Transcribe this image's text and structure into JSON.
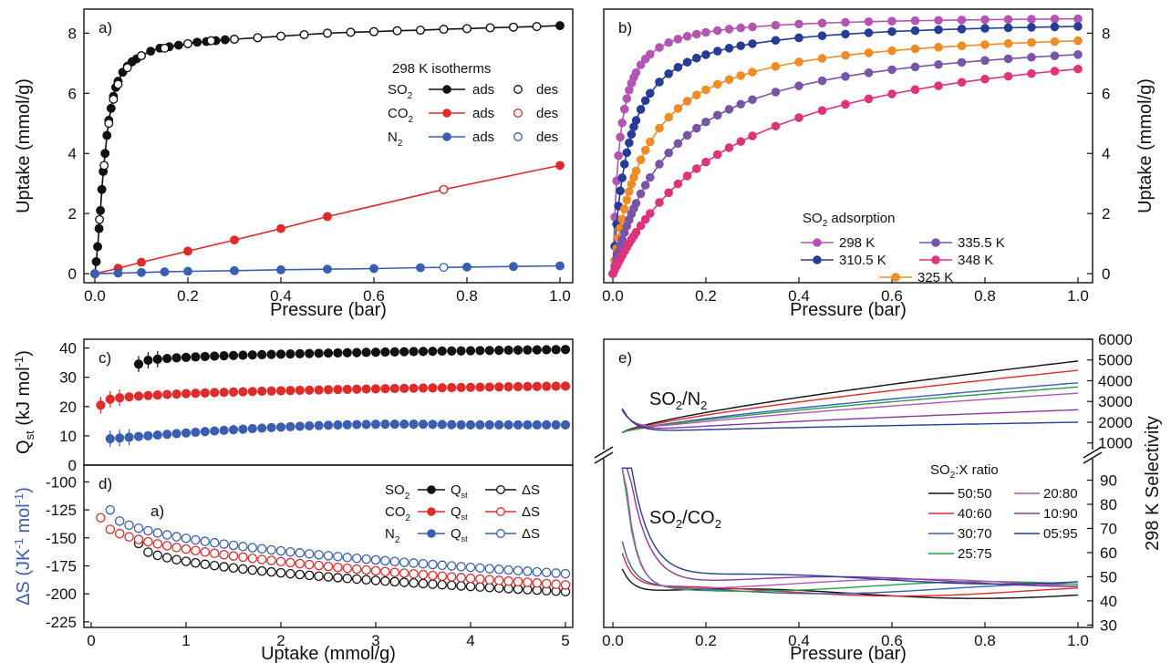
{
  "chart_data": [
    {
      "panel": "a)",
      "type": "scatter",
      "xlabel": "Pressure (bar)",
      "ylabel": "Uptake (mmol/g)",
      "xlim": [
        0,
        1.0
      ],
      "ylim": [
        -0.3,
        8.8
      ],
      "xticks": [
        "0.0",
        "0.2",
        "0.4",
        "0.6",
        "0.8",
        "1.0"
      ],
      "yticks": [
        "0",
        "2",
        "4",
        "6",
        "8"
      ],
      "legend_title": "298 K isotherms",
      "legend_labels": {
        "ads": "ads",
        "des": "des"
      },
      "legend_rows": [
        {
          "gas": "SO",
          "sub": "2",
          "color": "#111111"
        },
        {
          "gas": "CO",
          "sub": "2",
          "color": "#e02b2b"
        },
        {
          "gas": "N",
          "sub": "2",
          "color": "#3a5fb0"
        }
      ],
      "series": [
        {
          "name": "SO2 ads",
          "color": "#111111",
          "filled": true,
          "line": true,
          "x": [
            0.0,
            0.003,
            0.006,
            0.009,
            0.012,
            0.015,
            0.018,
            0.022,
            0.026,
            0.03,
            0.035,
            0.04,
            0.045,
            0.05,
            0.06,
            0.07,
            0.08,
            0.09,
            0.1,
            0.12,
            0.14,
            0.16,
            0.18,
            0.2,
            0.22,
            0.24,
            0.26,
            0.28,
            0.3,
            0.35,
            0.4,
            0.45,
            0.5,
            0.55,
            0.6,
            0.65,
            0.7,
            0.75,
            0.8,
            0.85,
            0.9,
            0.95,
            1.0
          ],
          "y": [
            0.0,
            0.4,
            0.9,
            1.5,
            2.1,
            2.8,
            3.4,
            4.0,
            4.6,
            5.1,
            5.5,
            5.9,
            6.2,
            6.4,
            6.7,
            6.9,
            7.05,
            7.15,
            7.25,
            7.4,
            7.5,
            7.55,
            7.6,
            7.65,
            7.7,
            7.72,
            7.75,
            7.78,
            7.8,
            7.85,
            7.9,
            7.95,
            8.0,
            8.03,
            8.05,
            8.08,
            8.1,
            8.13,
            8.15,
            8.18,
            8.2,
            8.22,
            8.25
          ]
        },
        {
          "name": "SO2 des",
          "color": "#111111",
          "filled": false,
          "line": false,
          "x": [
            0.01,
            0.02,
            0.03,
            0.04,
            0.05,
            0.07,
            0.1,
            0.15,
            0.2,
            0.25,
            0.3,
            0.35,
            0.4,
            0.45,
            0.5,
            0.55,
            0.6,
            0.65,
            0.7,
            0.75,
            0.8,
            0.85,
            0.9,
            0.95
          ],
          "y": [
            1.8,
            3.6,
            5.0,
            5.8,
            6.3,
            6.85,
            7.25,
            7.5,
            7.65,
            7.75,
            7.8,
            7.85,
            7.9,
            7.95,
            8.0,
            8.03,
            8.05,
            8.08,
            8.1,
            8.13,
            8.15,
            8.18,
            8.2,
            8.22
          ]
        },
        {
          "name": "CO2 ads",
          "color": "#e02b2b",
          "filled": true,
          "line": true,
          "x": [
            0.0,
            0.05,
            0.1,
            0.2,
            0.3,
            0.4,
            0.5,
            0.75,
            1.0
          ],
          "y": [
            0.0,
            0.18,
            0.38,
            0.75,
            1.12,
            1.5,
            1.9,
            2.8,
            3.6
          ]
        },
        {
          "name": "CO2 des",
          "color": "#e02b2b",
          "filled": false,
          "line": false,
          "x": [
            0.75
          ],
          "y": [
            2.8
          ]
        },
        {
          "name": "N2 ads",
          "color": "#3a5fb0",
          "filled": true,
          "line": true,
          "x": [
            0.0,
            0.05,
            0.1,
            0.15,
            0.2,
            0.3,
            0.4,
            0.5,
            0.6,
            0.7,
            0.8,
            0.9,
            1.0
          ],
          "y": [
            0.0,
            0.02,
            0.04,
            0.06,
            0.08,
            0.1,
            0.13,
            0.15,
            0.17,
            0.2,
            0.22,
            0.24,
            0.26
          ]
        },
        {
          "name": "N2 des",
          "color": "#3a5fb0",
          "filled": false,
          "line": false,
          "x": [
            0.75
          ],
          "y": [
            0.21
          ]
        }
      ]
    },
    {
      "panel": "b)",
      "type": "line",
      "xlabel": "Pressure (bar)",
      "ylabel": "Uptake (mmol/g)",
      "xlim": [
        0,
        1.0
      ],
      "ylim": [
        -0.3,
        8.8
      ],
      "xticks": [
        "0.0",
        "0.2",
        "0.4",
        "0.6",
        "0.8",
        "1.0"
      ],
      "yticks": [
        "0",
        "2",
        "4",
        "6",
        "8"
      ],
      "legend_title": "SO2 adsorption",
      "legend_title_parts": {
        "main": "SO",
        "sub": "2",
        "rest": " adsorption"
      },
      "series": [
        {
          "name": "298 K",
          "color": "#b455b4",
          "qmax": 8.6,
          "b": 70
        },
        {
          "name": "310.5 K",
          "color": "#263c96",
          "qmax": 8.5,
          "b": 30
        },
        {
          "name": "325 K",
          "color": "#f08c23",
          "qmax": 8.3,
          "b": 14
        },
        {
          "name": "335.5 K",
          "color": "#7855a8",
          "qmax": 8.2,
          "b": 8
        },
        {
          "name": "348 K",
          "color": "#e0327d",
          "qmax": 8.6,
          "b": 3.8
        }
      ]
    },
    {
      "panel": "c)",
      "type": "scatter",
      "xlim": [
        0,
        5
      ],
      "ylim": [
        0,
        43
      ],
      "yticks": [
        "0",
        "10",
        "20",
        "30",
        "40"
      ],
      "ylabel_main": "Q",
      "ylabel_sub": "st",
      "ylabel_rest": " (kJ mol",
      "ylabel_sup": "-1",
      "ylabel_close": ")",
      "series": [
        {
          "name": "SO2 Qst",
          "color": "#111111",
          "x_start": 0.5,
          "x_end": 5.0,
          "y_start": 34.5,
          "y_end": 39.5
        },
        {
          "name": "CO2 Qst",
          "color": "#e02b2b",
          "x_start": 0.1,
          "x_end": 5.0,
          "y_start": 20.5,
          "y_end": 27.0
        },
        {
          "name": "N2 Qst",
          "color": "#3a5fb0",
          "x_start": 0.2,
          "x_end": 5.0,
          "y_start": 9.0,
          "y_end": 12.0
        }
      ]
    },
    {
      "panel": "d)",
      "annotation": "a)",
      "type": "scatter",
      "xlabel": "Uptake (mmol/g)",
      "xlim": [
        0,
        5
      ],
      "ylim": [
        -230,
        -85
      ],
      "xticks": [
        "0",
        "1",
        "2",
        "3",
        "4",
        "5"
      ],
      "yticks": [
        "-100",
        "-125",
        "-150",
        "-175",
        "-200",
        "-225"
      ],
      "ylabel_main": "ΔS (JK",
      "ylabel_sup1": "-1",
      "ylabel_mid": " mol",
      "ylabel_sup2": "-1",
      "ylabel_close": ")",
      "legend": [
        {
          "gas": "SO",
          "sub": "2",
          "color": "#111111",
          "q": "Q",
          "qsub": "st",
          "ds": "ΔS"
        },
        {
          "gas": "CO",
          "sub": "2",
          "color": "#e02b2b",
          "q": "Q",
          "qsub": "st",
          "ds": "ΔS"
        },
        {
          "gas": "N",
          "sub": "2",
          "color": "#3a5fb0",
          "q": "Q",
          "qsub": "st",
          "ds": "ΔS"
        }
      ],
      "series": [
        {
          "name": "SO2 ΔS",
          "color": "#111111",
          "x_start": 0.5,
          "y_start": -155,
          "y_end": -198
        },
        {
          "name": "CO2 ΔS",
          "color": "#e02b2b",
          "x_start": 0.1,
          "y_start": -132,
          "y_end": -192
        },
        {
          "name": "N2 ΔS",
          "color": "#3a5fb0",
          "x_start": 0.2,
          "y_start": -125,
          "y_end": -182
        }
      ]
    },
    {
      "panel": "e)",
      "type": "line",
      "xlabel": "Pressure (bar)",
      "ylabel": "298 K Selectivity",
      "xlim": [
        0,
        1.0
      ],
      "xticks": [
        "0.0",
        "0.2",
        "0.4",
        "0.6",
        "0.8",
        "1.0"
      ],
      "upper_ylim": [
        900,
        6000
      ],
      "upper_yticks": [
        "1000",
        "2000",
        "3000",
        "4000",
        "5000",
        "6000"
      ],
      "lower_ylim": [
        29,
        97
      ],
      "lower_yticks": [
        "30",
        "40",
        "50",
        "60",
        "70",
        "80",
        "90"
      ],
      "upper_label": {
        "a": "SO",
        "asub": "2",
        "b": "/N",
        "bsub": "2"
      },
      "lower_label": {
        "a": "SO",
        "asub": "2",
        "b": "/CO",
        "bsub": "2"
      },
      "legend_title": {
        "main": "SO",
        "sub": "2",
        "rest": ":X ratio"
      },
      "ratios": [
        "50:50",
        "40:60",
        "30:70",
        "25:75",
        "20:80",
        "10:90",
        "05:95"
      ],
      "colors": [
        "#111111",
        "#e02b2b",
        "#3a5fb0",
        "#2a9e4a",
        "#b455b4",
        "#8a3a9e",
        "#263c96"
      ],
      "so2_n2_end": [
        4950,
        4500,
        3900,
        3700,
        3400,
        2600,
        2000
      ],
      "so2_co2_end": [
        43,
        44,
        45,
        46,
        47,
        48,
        49
      ]
    }
  ]
}
